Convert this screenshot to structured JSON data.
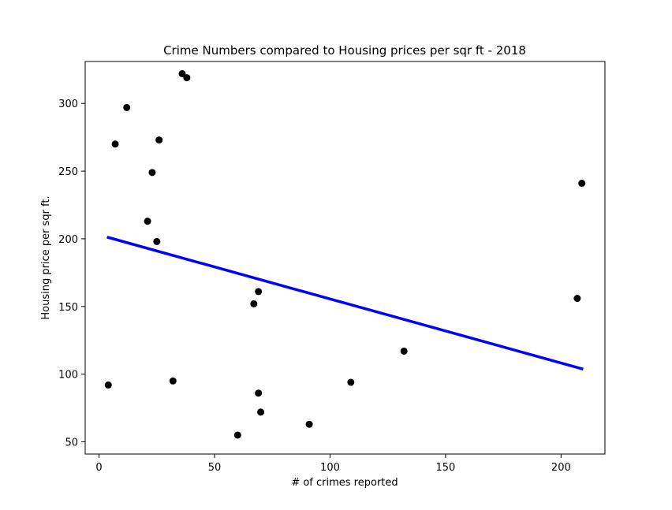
{
  "chart_data": {
    "type": "scatter",
    "title": "Crime Numbers compared to Housing prices per sqr ft - 2018",
    "xlabel": "# of crimes reported",
    "ylabel": "Housing price per sqr ft.",
    "xlim": [
      -6,
      219
    ],
    "ylim": [
      41,
      331
    ],
    "xticks": [
      0,
      50,
      100,
      150,
      200
    ],
    "yticks": [
      50,
      100,
      150,
      200,
      250,
      300
    ],
    "grid": false,
    "legend": "none",
    "series": [
      {
        "kind": "scatter",
        "color": "#000000",
        "points": [
          {
            "x": 4,
            "y": 92
          },
          {
            "x": 7,
            "y": 270
          },
          {
            "x": 12,
            "y": 297
          },
          {
            "x": 21,
            "y": 213
          },
          {
            "x": 23,
            "y": 249
          },
          {
            "x": 25,
            "y": 198
          },
          {
            "x": 26,
            "y": 273
          },
          {
            "x": 32,
            "y": 95
          },
          {
            "x": 36,
            "y": 322
          },
          {
            "x": 38,
            "y": 319
          },
          {
            "x": 60,
            "y": 55
          },
          {
            "x": 67,
            "y": 152
          },
          {
            "x": 69,
            "y": 161
          },
          {
            "x": 69,
            "y": 86
          },
          {
            "x": 70,
            "y": 72
          },
          {
            "x": 91,
            "y": 63
          },
          {
            "x": 109,
            "y": 94
          },
          {
            "x": 132,
            "y": 117
          },
          {
            "x": 207,
            "y": 156
          },
          {
            "x": 209,
            "y": 241
          }
        ]
      },
      {
        "kind": "line",
        "color": "#0000ff",
        "points": [
          {
            "x": 4,
            "y": 201
          },
          {
            "x": 209,
            "y": 104
          }
        ]
      }
    ]
  }
}
